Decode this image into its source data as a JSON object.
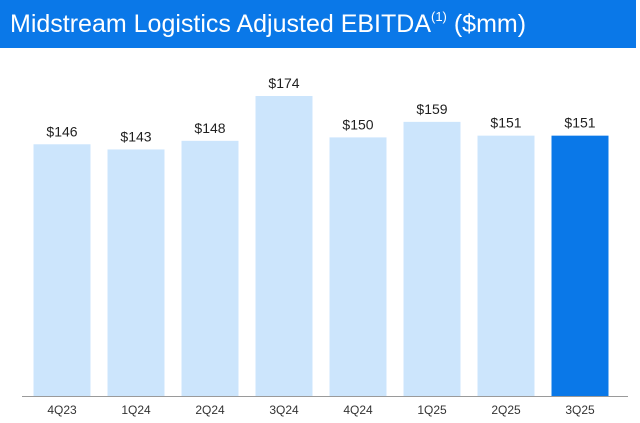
{
  "header": {
    "title": "Midstream Logistics Adjusted EBITDA",
    "footnote": "(1)",
    "unit": "($mm)"
  },
  "colors": {
    "title_background": "#0a78e8",
    "bar": "#cce5fc",
    "bar_highlight": "#0a78e8",
    "axis": "#9a9a9a"
  },
  "chart_data": {
    "type": "bar",
    "title": "Midstream Logistics Adjusted EBITDA(1) ($mm)",
    "xlabel": "",
    "ylabel": "",
    "ylim": [
      0,
      174
    ],
    "grid": false,
    "categories": [
      "4Q23",
      "1Q24",
      "2Q24",
      "3Q24",
      "4Q24",
      "1Q25",
      "2Q25",
      "3Q25"
    ],
    "values": [
      146,
      143,
      148,
      174,
      150,
      159,
      151,
      151
    ],
    "value_labels": [
      "$146",
      "$143",
      "$148",
      "$174",
      "$150",
      "$159",
      "$151",
      "$151"
    ],
    "highlight_category": "3Q25"
  }
}
